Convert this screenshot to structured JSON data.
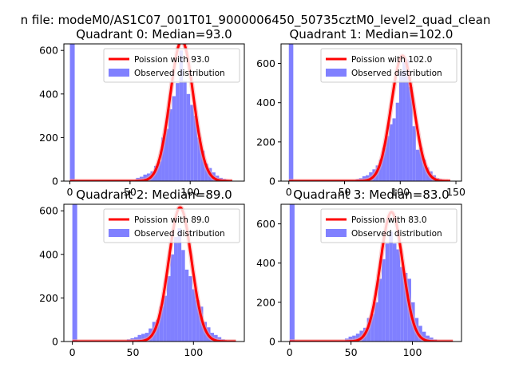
{
  "figure": {
    "suptitle": "n file: modeM0/AS1C07_001T01_9000006450_50735cztM0_level2_quad_clean"
  },
  "colors": {
    "histogram": "#8080ff",
    "poisson": "#ff0000",
    "poisson_glow": "#f4a0a0"
  },
  "chart_data": [
    {
      "type": "bar",
      "title": "Quadrant 0: Median=93.0",
      "xlim": [
        -5,
        145
      ],
      "ylim": [
        0,
        630
      ],
      "xticks": [
        0,
        50,
        100
      ],
      "yticks": [
        0,
        200,
        400,
        600
      ],
      "legend_position": "upper right",
      "series": [
        {
          "name": "Poission with 93.0",
          "kind": "line",
          "mean": 93.0,
          "x_range": [
            0,
            135
          ],
          "peak": 645
        },
        {
          "name": "Observed distribution",
          "kind": "histogram",
          "bins": [
            [
              0,
              4,
              700
            ],
            [
              55,
              58,
              15
            ],
            [
              58,
              61,
              20
            ],
            [
              61,
              64,
              30
            ],
            [
              64,
              67,
              35
            ],
            [
              67,
              70,
              45
            ],
            [
              70,
              73,
              70
            ],
            [
              73,
              76,
              90
            ],
            [
              76,
              79,
              200
            ],
            [
              79,
              82,
              240
            ],
            [
              82,
              85,
              330
            ],
            [
              85,
              88,
              390
            ],
            [
              88,
              91,
              450
            ],
            [
              91,
              94,
              600
            ],
            [
              94,
              97,
              460
            ],
            [
              97,
              100,
              400
            ],
            [
              100,
              103,
              350
            ],
            [
              103,
              106,
              300
            ],
            [
              106,
              109,
              200
            ],
            [
              109,
              112,
              140
            ],
            [
              112,
              115,
              80
            ],
            [
              115,
              118,
              60
            ],
            [
              118,
              121,
              40
            ],
            [
              121,
              124,
              25
            ],
            [
              124,
              127,
              15
            ],
            [
              127,
              130,
              10
            ]
          ]
        }
      ]
    },
    {
      "type": "bar",
      "title": "Quadrant 1: Median=102.0",
      "xlim": [
        -7,
        155
      ],
      "ylim": [
        0,
        700
      ],
      "xticks": [
        0,
        50,
        100,
        150
      ],
      "yticks": [
        0,
        200,
        400,
        600
      ],
      "legend_position": "upper right",
      "series": [
        {
          "name": "Poission with 102.0",
          "kind": "line",
          "mean": 102.0,
          "x_range": [
            0,
            145
          ],
          "peak": 640
        },
        {
          "name": "Observed distribution",
          "kind": "histogram",
          "bins": [
            [
              0,
              4,
              720
            ],
            [
              60,
              63,
              10
            ],
            [
              63,
              66,
              15
            ],
            [
              66,
              69,
              25
            ],
            [
              69,
              72,
              30
            ],
            [
              72,
              75,
              45
            ],
            [
              75,
              78,
              60
            ],
            [
              78,
              81,
              80
            ],
            [
              81,
              84,
              110
            ],
            [
              84,
              87,
              170
            ],
            [
              87,
              90,
              230
            ],
            [
              90,
              93,
              290
            ],
            [
              93,
              96,
              320
            ],
            [
              96,
              99,
              400
            ],
            [
              99,
              102,
              560
            ],
            [
              102,
              105,
              610
            ],
            [
              105,
              108,
              620
            ],
            [
              108,
              111,
              480
            ],
            [
              111,
              114,
              280
            ],
            [
              114,
              117,
              160
            ],
            [
              117,
              120,
              170
            ],
            [
              120,
              123,
              110
            ],
            [
              123,
              126,
              70
            ],
            [
              126,
              129,
              50
            ],
            [
              129,
              132,
              30
            ],
            [
              132,
              135,
              15
            ],
            [
              135,
              138,
              10
            ]
          ]
        }
      ]
    },
    {
      "type": "bar",
      "title": "Quadrant 2: Median=89.0",
      "xlim": [
        -7,
        142
      ],
      "ylim": [
        0,
        630
      ],
      "xticks": [
        0,
        50,
        100
      ],
      "yticks": [
        0,
        200,
        400,
        600
      ],
      "legend_position": "upper right",
      "series": [
        {
          "name": "Poission with 89.0",
          "kind": "line",
          "mean": 89.0,
          "x_range": [
            0,
            135
          ],
          "peak": 615
        },
        {
          "name": "Observed distribution",
          "kind": "histogram",
          "bins": [
            [
              0,
              4,
              650
            ],
            [
              45,
              48,
              10
            ],
            [
              48,
              51,
              15
            ],
            [
              51,
              54,
              20
            ],
            [
              54,
              57,
              30
            ],
            [
              57,
              60,
              35
            ],
            [
              60,
              63,
              40
            ],
            [
              63,
              66,
              60
            ],
            [
              66,
              69,
              90
            ],
            [
              69,
              72,
              100
            ],
            [
              72,
              75,
              160
            ],
            [
              75,
              78,
              210
            ],
            [
              78,
              81,
              300
            ],
            [
              81,
              84,
              400
            ],
            [
              84,
              87,
              480
            ],
            [
              87,
              90,
              520
            ],
            [
              90,
              93,
              420
            ],
            [
              93,
              96,
              330
            ],
            [
              96,
              99,
              300
            ],
            [
              99,
              102,
              240
            ],
            [
              102,
              105,
              190
            ],
            [
              105,
              108,
              160
            ],
            [
              108,
              111,
              90
            ],
            [
              111,
              114,
              65
            ],
            [
              114,
              117,
              40
            ],
            [
              117,
              120,
              30
            ],
            [
              120,
              123,
              20
            ],
            [
              123,
              126,
              10
            ]
          ]
        }
      ]
    },
    {
      "type": "bar",
      "title": "Quadrant 3: Median=83.0",
      "xlim": [
        -7,
        140
      ],
      "ylim": [
        0,
        700
      ],
      "xticks": [
        0,
        50,
        100
      ],
      "yticks": [
        0,
        200,
        400,
        600
      ],
      "legend_position": "upper right",
      "series": [
        {
          "name": "Poission with 83.0",
          "kind": "line",
          "mean": 83.0,
          "x_range": [
            0,
            133
          ],
          "peak": 660
        },
        {
          "name": "Observed distribution",
          "kind": "histogram",
          "bins": [
            [
              0,
              4,
              720
            ],
            [
              45,
              48,
              15
            ],
            [
              48,
              51,
              25
            ],
            [
              51,
              54,
              30
            ],
            [
              54,
              57,
              40
            ],
            [
              57,
              60,
              55
            ],
            [
              60,
              63,
              70
            ],
            [
              63,
              66,
              120
            ],
            [
              66,
              69,
              140
            ],
            [
              69,
              72,
              200
            ],
            [
              72,
              75,
              320
            ],
            [
              75,
              78,
              420
            ],
            [
              78,
              81,
              500
            ],
            [
              81,
              84,
              560
            ],
            [
              84,
              87,
              500
            ],
            [
              87,
              90,
              470
            ],
            [
              90,
              93,
              380
            ],
            [
              93,
              96,
              350
            ],
            [
              96,
              99,
              320
            ],
            [
              99,
              102,
              200
            ],
            [
              102,
              105,
              120
            ],
            [
              105,
              108,
              80
            ],
            [
              108,
              111,
              50
            ],
            [
              111,
              114,
              30
            ],
            [
              114,
              117,
              20
            ],
            [
              117,
              120,
              10
            ]
          ]
        }
      ]
    }
  ]
}
